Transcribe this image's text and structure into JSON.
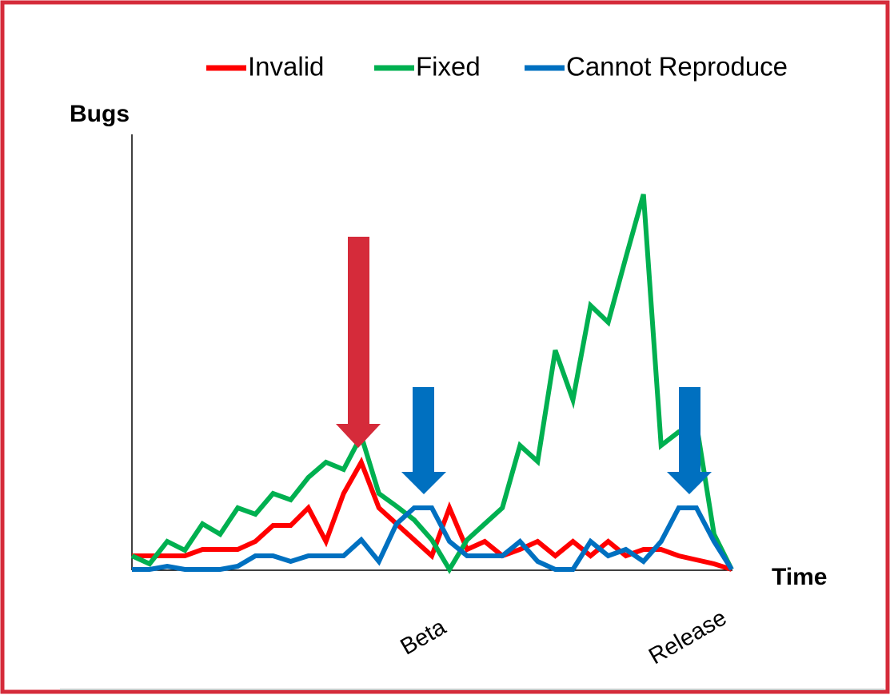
{
  "chart_data": {
    "type": "line",
    "x_label": "Time",
    "y_label": "Bugs",
    "categories": [
      null,
      null,
      null,
      null,
      null,
      null,
      null,
      null,
      null,
      null,
      null,
      null,
      null,
      null,
      null,
      null,
      null,
      "Beta",
      null,
      null,
      null,
      null,
      null,
      null,
      null,
      null,
      null,
      null,
      null,
      null,
      null,
      null,
      "Release",
      null,
      null
    ],
    "series": [
      {
        "name": "Invalid",
        "color": "#ff0000",
        "values": [
          0.85,
          0.85,
          0.85,
          0.85,
          1.25,
          1.25,
          1.25,
          1.75,
          2.75,
          2.75,
          3.85,
          1.75,
          4.75,
          6.7,
          3.85,
          2.85,
          1.85,
          0.85,
          3.85,
          1.25,
          1.75,
          0.85,
          1.25,
          1.75,
          0.85,
          1.75,
          0.85,
          1.75,
          0.85,
          1.25,
          1.25,
          0.85,
          0.6,
          0.35,
          0
        ]
      },
      {
        "name": "Fixed",
        "color": "#00b050",
        "values": [
          0.85,
          0.35,
          1.75,
          1.2,
          2.85,
          2.2,
          3.85,
          3.45,
          4.75,
          4.35,
          5.75,
          6.7,
          6.25,
          8.35,
          4.75,
          3.95,
          3.1,
          1.85,
          0,
          1.85,
          2.85,
          3.85,
          7.75,
          6.75,
          13.7,
          10.6,
          16.5,
          15.45,
          19.5,
          23.45,
          7.75,
          8.6,
          9.1,
          2.2,
          0
        ]
      },
      {
        "name": "Cannot Reproduce",
        "color": "#0070c0",
        "values": [
          0,
          0,
          0.2,
          0,
          0,
          0,
          0.2,
          0.85,
          0.85,
          0.5,
          0.85,
          0.85,
          0.85,
          1.85,
          0.5,
          2.85,
          3.85,
          3.85,
          1.75,
          0.85,
          0.85,
          0.85,
          1.75,
          0.5,
          0,
          0,
          1.75,
          0.85,
          1.25,
          0.5,
          1.75,
          3.85,
          3.85,
          1.75,
          0
        ]
      }
    ],
    "ylim": [
      0,
      27.2
    ],
    "legend": "top"
  }
}
